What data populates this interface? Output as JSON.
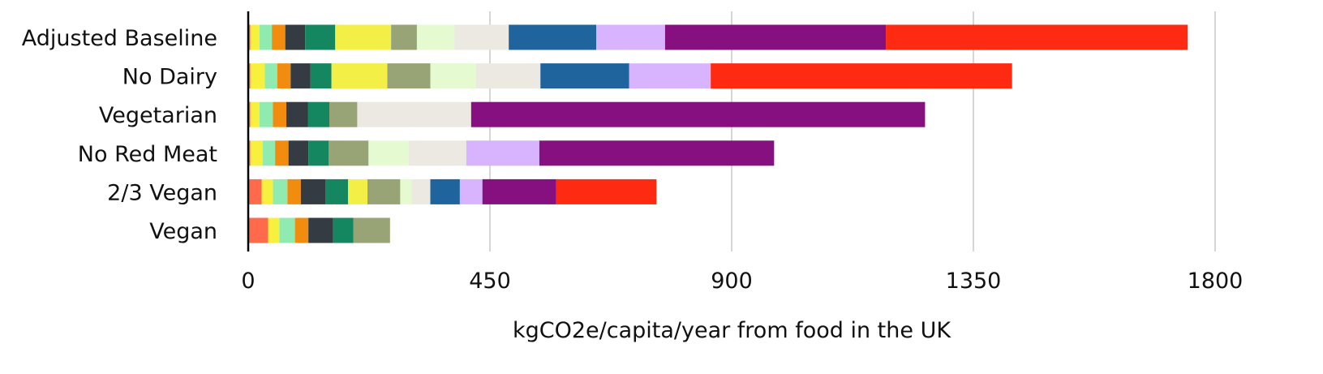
{
  "chart_data": {
    "type": "bar",
    "orientation": "horizontal",
    "stacked": true,
    "title": "",
    "xlabel": "kgCO2e/capita/year from food in the UK",
    "ylabel": "",
    "xlim": [
      0,
      1800
    ],
    "x_ticks": [
      0,
      450,
      900,
      1350,
      1800
    ],
    "x_tick_labels": [
      "0",
      "450",
      "900",
      "1350",
      "1800"
    ],
    "grid": "vertical",
    "legend": "none",
    "categories": [
      "Adjusted Baseline",
      "No Dairy",
      "Vegetarian",
      "No Red Meat",
      "2/3 Vegan",
      "Vegan"
    ],
    "bars": [
      {
        "category": "Adjusted Baseline",
        "segments": [
          {
            "color": "#ff6a4d",
            "value": 4
          },
          {
            "color": "#f7f03c",
            "value": 17
          },
          {
            "color": "#90ebb0",
            "value": 23
          },
          {
            "color": "#f28c0e",
            "value": 25
          },
          {
            "color": "#353b42",
            "value": 37
          },
          {
            "color": "#148760",
            "value": 56
          },
          {
            "color": "#f3ef47",
            "value": 104
          },
          {
            "color": "#98a475",
            "value": 48
          },
          {
            "color": "#e6fad2",
            "value": 70
          },
          {
            "color": "#ebe9e1",
            "value": 101
          },
          {
            "color": "#1f649d",
            "value": 163
          },
          {
            "color": "#d8b4fe",
            "value": 128
          },
          {
            "color": "#86107f",
            "value": 411
          },
          {
            "color": "#ff2a12",
            "value": 562
          }
        ]
      },
      {
        "category": "No Dairy",
        "segments": [
          {
            "color": "#ff6a4d",
            "value": 4
          },
          {
            "color": "#f7f03c",
            "value": 27
          },
          {
            "color": "#90ebb0",
            "value": 23
          },
          {
            "color": "#f28c0e",
            "value": 25
          },
          {
            "color": "#353b42",
            "value": 37
          },
          {
            "color": "#148760",
            "value": 39
          },
          {
            "color": "#f3ef47",
            "value": 104
          },
          {
            "color": "#98a475",
            "value": 80
          },
          {
            "color": "#e6fad2",
            "value": 85
          },
          {
            "color": "#ebe9e1",
            "value": 120
          },
          {
            "color": "#1f649d",
            "value": 165
          },
          {
            "color": "#d8b4fe",
            "value": 152
          },
          {
            "color": "#ff2a12",
            "value": 561
          }
        ]
      },
      {
        "category": "Vegetarian",
        "segments": [
          {
            "color": "#ff6a4d",
            "value": 4
          },
          {
            "color": "#f7f03c",
            "value": 17
          },
          {
            "color": "#90ebb0",
            "value": 25
          },
          {
            "color": "#f28c0e",
            "value": 25
          },
          {
            "color": "#353b42",
            "value": 40
          },
          {
            "color": "#148760",
            "value": 40
          },
          {
            "color": "#98a475",
            "value": 52
          },
          {
            "color": "#ebe9e1",
            "value": 212
          },
          {
            "color": "#86107f",
            "value": 845
          }
        ]
      },
      {
        "category": "No Red Meat",
        "segments": [
          {
            "color": "#ff6a4d",
            "value": 4
          },
          {
            "color": "#f7f03c",
            "value": 23
          },
          {
            "color": "#90ebb0",
            "value": 23
          },
          {
            "color": "#f28c0e",
            "value": 25
          },
          {
            "color": "#353b42",
            "value": 37
          },
          {
            "color": "#148760",
            "value": 38
          },
          {
            "color": "#98a475",
            "value": 74
          },
          {
            "color": "#e6fad2",
            "value": 75
          },
          {
            "color": "#ebe9e1",
            "value": 107
          },
          {
            "color": "#d8b4fe",
            "value": 136
          },
          {
            "color": "#86107f",
            "value": 437
          }
        ]
      },
      {
        "category": "2/3 Vegan",
        "segments": [
          {
            "color": "#ff6a4d",
            "value": 25
          },
          {
            "color": "#f7f03c",
            "value": 21
          },
          {
            "color": "#90ebb0",
            "value": 27
          },
          {
            "color": "#f28c0e",
            "value": 25
          },
          {
            "color": "#353b42",
            "value": 46
          },
          {
            "color": "#148760",
            "value": 42
          },
          {
            "color": "#f3ef47",
            "value": 36
          },
          {
            "color": "#98a475",
            "value": 61
          },
          {
            "color": "#e6fad2",
            "value": 21
          },
          {
            "color": "#ebe9e1",
            "value": 35
          },
          {
            "color": "#1f649d",
            "value": 55
          },
          {
            "color": "#d8b4fe",
            "value": 42
          },
          {
            "color": "#86107f",
            "value": 137
          },
          {
            "color": "#ff2a12",
            "value": 187
          }
        ]
      },
      {
        "category": "Vegan",
        "segments": [
          {
            "color": "#ff6a4d",
            "value": 37
          },
          {
            "color": "#f7f03c",
            "value": 21
          },
          {
            "color": "#90ebb0",
            "value": 29
          },
          {
            "color": "#f28c0e",
            "value": 25
          },
          {
            "color": "#353b42",
            "value": 46
          },
          {
            "color": "#148760",
            "value": 38
          },
          {
            "color": "#98a475",
            "value": 68
          }
        ]
      }
    ]
  }
}
